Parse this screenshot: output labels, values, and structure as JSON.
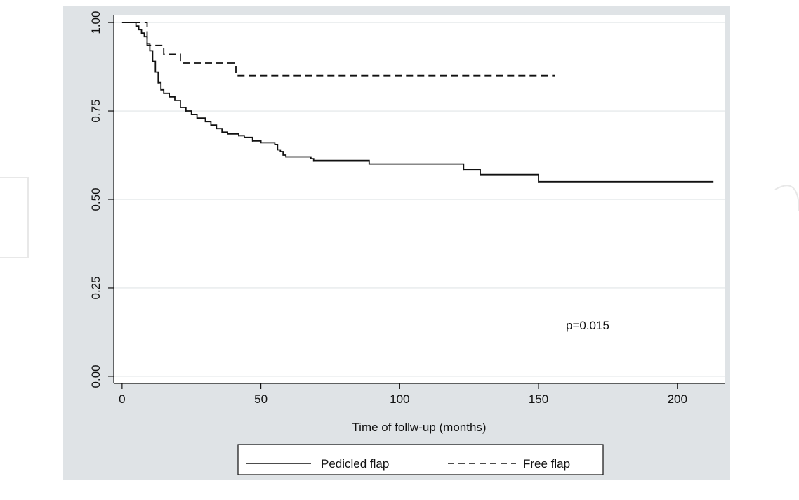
{
  "chart_data": {
    "type": "line",
    "title": "",
    "xlabel": "Time of follw-up (months)",
    "ylabel": "",
    "xlim": [
      -3,
      217
    ],
    "ylim": [
      -0.02,
      1.02
    ],
    "x_ticks": [
      0,
      50,
      100,
      150,
      200
    ],
    "x_tick_labels": [
      "0",
      "50",
      "100",
      "150",
      "200"
    ],
    "y_ticks": [
      0,
      0.25,
      0.5,
      0.75,
      1.0
    ],
    "y_tick_labels": [
      "0.00",
      "0.25",
      "0.50",
      "0.75",
      "1.00"
    ],
    "grid": "horizontal",
    "legend_position": "bottom",
    "annotation": "p=0.015",
    "series": [
      {
        "name": "Pedicled flap",
        "style": "solid",
        "color": "#111111",
        "points": [
          [
            0,
            1.0
          ],
          [
            4,
            1.0
          ],
          [
            5,
            0.99
          ],
          [
            6,
            0.98
          ],
          [
            7,
            0.97
          ],
          [
            8,
            0.96
          ],
          [
            9,
            0.94
          ],
          [
            10,
            0.92
          ],
          [
            11,
            0.89
          ],
          [
            12,
            0.86
          ],
          [
            13,
            0.83
          ],
          [
            14,
            0.81
          ],
          [
            15,
            0.8
          ],
          [
            17,
            0.79
          ],
          [
            19,
            0.78
          ],
          [
            21,
            0.76
          ],
          [
            23,
            0.75
          ],
          [
            25,
            0.74
          ],
          [
            27,
            0.73
          ],
          [
            30,
            0.72
          ],
          [
            32,
            0.71
          ],
          [
            34,
            0.7
          ],
          [
            36,
            0.69
          ],
          [
            38,
            0.685
          ],
          [
            42,
            0.68
          ],
          [
            44,
            0.675
          ],
          [
            47,
            0.665
          ],
          [
            50,
            0.66
          ],
          [
            55,
            0.655
          ],
          [
            56,
            0.64
          ],
          [
            57,
            0.635
          ],
          [
            58,
            0.625
          ],
          [
            59,
            0.62
          ],
          [
            68,
            0.615
          ],
          [
            69,
            0.61
          ],
          [
            89,
            0.6
          ],
          [
            123,
            0.585
          ],
          [
            129,
            0.57
          ],
          [
            150,
            0.55
          ],
          [
            213,
            0.55
          ]
        ]
      },
      {
        "name": "Free flap",
        "style": "dashed",
        "color": "#111111",
        "points": [
          [
            0,
            1.0
          ],
          [
            9,
            1.0
          ],
          [
            9,
            0.935
          ],
          [
            15,
            0.935
          ],
          [
            15,
            0.91
          ],
          [
            21,
            0.91
          ],
          [
            21,
            0.885
          ],
          [
            41,
            0.885
          ],
          [
            41,
            0.85
          ],
          [
            156,
            0.85
          ]
        ]
      }
    ]
  },
  "colors": {
    "outer_background": "#dfe3e6",
    "plot_background": "#ffffff",
    "gridline": "#e6eaec",
    "line": "#111111"
  }
}
